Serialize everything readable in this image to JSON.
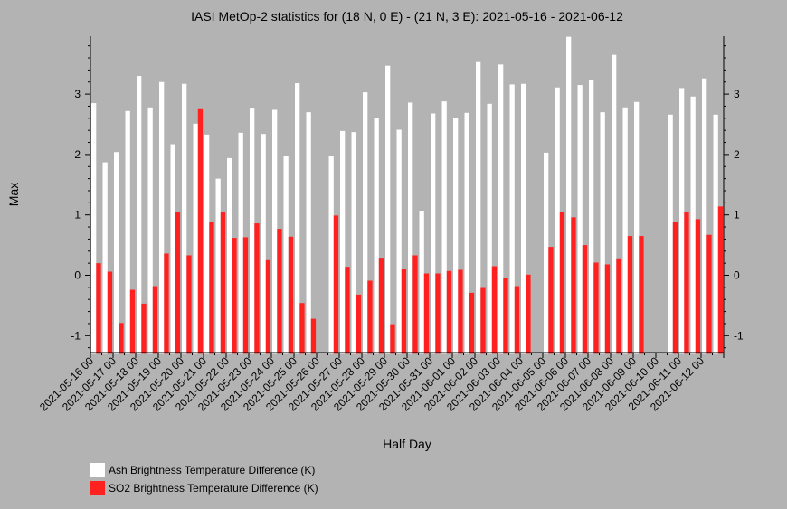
{
  "chart_data": {
    "type": "bar",
    "title": "IASI MetOp-2 statistics for (18 N, 0 E) - (21 N, 3 E): 2021-05-16 - 2021-06-12",
    "xlabel": "Half Day",
    "ylabel": "Max",
    "ylim": [
      -1.3,
      3.95
    ],
    "yticks": [
      -1,
      0,
      1,
      2,
      3
    ],
    "grid": false,
    "legend_position": "bottom-left",
    "tick_labels": [
      "2021-05-16 00",
      "2021-05-17 00",
      "2021-05-18 00",
      "2021-05-19 00",
      "2021-05-20 00",
      "2021-05-21 00",
      "2021-05-22 00",
      "2021-05-23 00",
      "2021-05-24 00",
      "2021-05-25 00",
      "2021-05-26 00",
      "2021-05-27 00",
      "2021-05-28 00",
      "2021-05-29 00",
      "2021-05-30 00",
      "2021-05-31 00",
      "2021-06-01 00",
      "2021-06-02 00",
      "2021-06-03 00",
      "2021-06-04 00",
      "2021-06-05 00",
      "2021-06-06 00",
      "2021-06-07 00",
      "2021-06-08 00",
      "2021-06-09 00",
      "2021-06-10 00",
      "2021-06-11 00",
      "2021-06-12 00"
    ],
    "series": [
      {
        "name": "Ash Brightness Temperature Difference (K)",
        "color": "#ffffff",
        "values": [
          2.85,
          1.87,
          2.04,
          2.72,
          3.3,
          2.78,
          3.2,
          2.17,
          3.17,
          2.51,
          2.33,
          1.6,
          1.94,
          2.36,
          2.76,
          2.34,
          2.74,
          1.98,
          3.18,
          2.7,
          null,
          1.97,
          2.39,
          2.37,
          3.03,
          2.6,
          3.47,
          2.41,
          2.86,
          1.07,
          2.68,
          2.88,
          2.61,
          2.69,
          3.53,
          2.84,
          3.49,
          3.16,
          3.17,
          null,
          2.03,
          3.11,
          3.95,
          3.15,
          3.24,
          2.7,
          3.65,
          2.78,
          2.87,
          null,
          null,
          2.66,
          3.1,
          2.96,
          3.26,
          2.66
        ]
      },
      {
        "name": "SO2 Brightness Temperature Difference (K)",
        "color": "#ff2020",
        "values": [
          0.2,
          0.06,
          -0.79,
          -0.24,
          -0.47,
          -0.18,
          0.36,
          1.04,
          0.33,
          2.75,
          0.88,
          1.04,
          0.62,
          0.63,
          0.86,
          0.25,
          0.77,
          0.64,
          -0.46,
          -0.72,
          null,
          0.99,
          0.14,
          -0.32,
          -0.09,
          0.29,
          -0.81,
          0.11,
          0.33,
          0.03,
          0.03,
          0.07,
          0.09,
          -0.29,
          -0.21,
          0.15,
          -0.05,
          -0.18,
          0.01,
          null,
          0.47,
          1.05,
          0.96,
          0.5,
          0.21,
          0.18,
          0.28,
          0.65,
          0.65,
          null,
          null,
          0.88,
          1.04,
          0.93,
          0.67,
          1.14
        ]
      }
    ]
  }
}
